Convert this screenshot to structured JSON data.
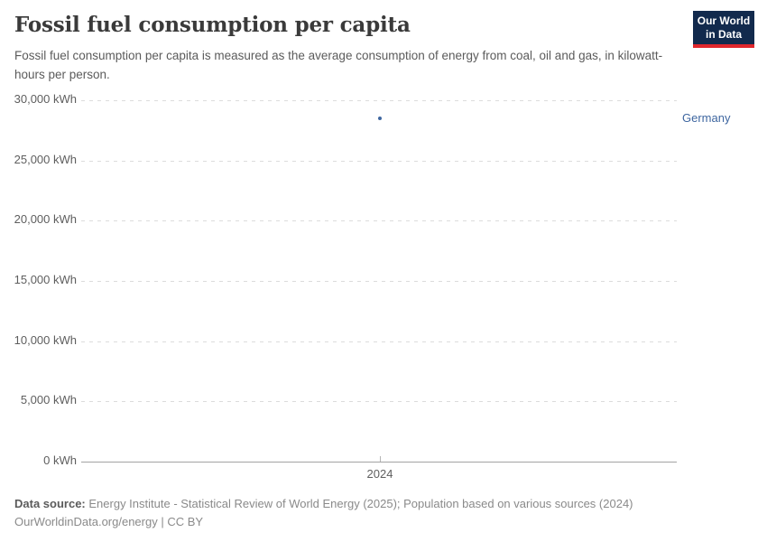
{
  "header": {
    "title": "Fossil fuel consumption per capita",
    "subtitle": "Fossil fuel consumption per capita is measured as the average consumption of energy from coal, oil and gas, in kilowatt-hours per person.",
    "logo": {
      "line1": "Our World",
      "line2": "in Data",
      "bg_color": "#122a4d",
      "accent_color": "#e0262c"
    }
  },
  "chart_data": {
    "type": "scatter",
    "title": "Fossil fuel consumption per capita",
    "xlabel": "",
    "ylabel": "kWh",
    "x": [
      2024
    ],
    "x_ticks": [
      "2024"
    ],
    "y_ticks": [
      "30,000 kWh",
      "25,000 kWh",
      "20,000 kWh",
      "15,000 kWh",
      "10,000 kWh",
      "5,000 kWh",
      "0 kWh"
    ],
    "ylim": [
      0,
      30000
    ],
    "grid": "horizontal-dashed",
    "legend_position": "right",
    "series": [
      {
        "name": "Germany",
        "color": "#3e66a0",
        "points": [
          {
            "x": 2024,
            "y": 28500
          }
        ]
      }
    ]
  },
  "entity_label": "Germany",
  "footer": {
    "data_source_label": "Data source:",
    "data_source_text": "Energy Institute - Statistical Review of World Energy (2025); Population based on various sources (2024)",
    "link_line": "OurWorldinData.org/energy | CC BY"
  }
}
